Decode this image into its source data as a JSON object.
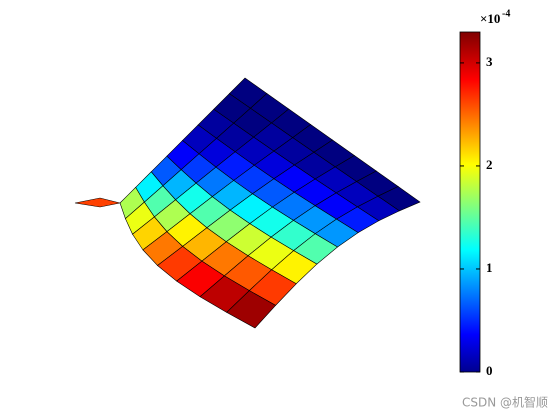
{
  "chart_data": {
    "type": "surface",
    "values": [
      [
        1.8,
        2.0,
        2.2,
        2.5,
        2.7,
        2.9,
        3.1,
        3.2
      ],
      [
        1.2,
        1.5,
        1.8,
        2.1,
        2.3,
        2.5,
        2.6,
        2.7
      ],
      [
        0.7,
        1.0,
        1.3,
        1.5,
        1.7,
        1.9,
        2.0,
        2.1
      ],
      [
        0.4,
        0.6,
        0.8,
        1.0,
        1.2,
        1.3,
        1.4,
        1.5
      ],
      [
        0.2,
        0.3,
        0.5,
        0.6,
        0.7,
        0.8,
        0.9,
        0.9
      ],
      [
        0.1,
        0.1,
        0.2,
        0.3,
        0.4,
        0.4,
        0.4,
        0.5
      ],
      [
        0,
        0,
        0.1,
        0.1,
        0.1,
        0.2,
        0.2,
        0.2
      ],
      [
        0,
        0,
        0,
        0,
        0,
        0,
        0,
        0
      ]
    ],
    "colormap": "jet",
    "clim": [
      0,
      3.3
    ],
    "cticks": [
      0,
      1,
      2,
      3
    ],
    "colorbar_exponent": {
      "base": "×10",
      "power": "-4"
    }
  },
  "watermark": "CSDN @机智顺"
}
